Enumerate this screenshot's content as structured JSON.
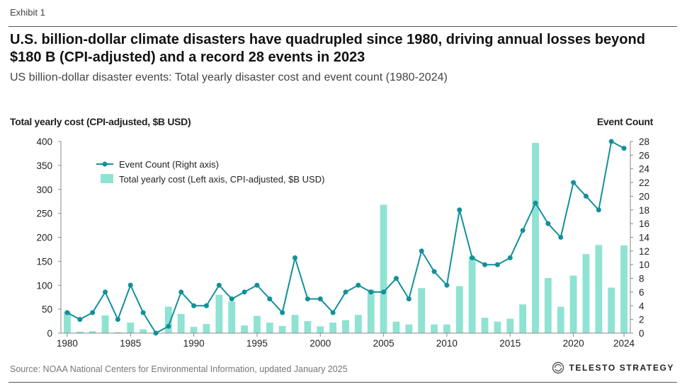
{
  "exhibit": "Exhibit 1",
  "headline": "U.S. billion-dollar climate disasters have quadrupled since 1980, driving annual losses beyond $180 B (CPI-adjusted) and a record 28 events in 2023",
  "subtitle": "US billion-dollar disaster events: Total yearly disaster cost and event count (1980-2024)",
  "source": "Source: NOAA National Centers for Environmental Information, updated January 2025",
  "brand": {
    "name": "TELESTO STRATEGY",
    "logo_icon": "circular-arrows-icon"
  },
  "colors": {
    "bar": "#8ee3d3",
    "line": "#13909a",
    "axis": "#888888",
    "text": "#222222"
  },
  "chart_data": {
    "type": "bar+line",
    "x": [
      1980,
      1981,
      1982,
      1983,
      1984,
      1985,
      1986,
      1987,
      1988,
      1989,
      1990,
      1991,
      1992,
      1993,
      1994,
      1995,
      1996,
      1997,
      1998,
      1999,
      2000,
      2001,
      2002,
      2003,
      2004,
      2005,
      2006,
      2007,
      2008,
      2009,
      2010,
      2011,
      2012,
      2013,
      2014,
      2015,
      2016,
      2017,
      2018,
      2019,
      2020,
      2021,
      2022,
      2023,
      2024
    ],
    "series": [
      {
        "name": "Event Count (Right axis)",
        "kind": "line",
        "axis": "right",
        "values": [
          3,
          2,
          3,
          6,
          2,
          7,
          3,
          0,
          1,
          6,
          4,
          4,
          7,
          5,
          6,
          7,
          5,
          3,
          11,
          5,
          5,
          3,
          6,
          7,
          6,
          6,
          8,
          5,
          12,
          9,
          7,
          18,
          11,
          10,
          10,
          11,
          15,
          19,
          16,
          14,
          22,
          20,
          18,
          28,
          27
        ]
      },
      {
        "name": "Total yearly cost (Left axis, CPI-adjusted, $B USD)",
        "kind": "bar",
        "axis": "left",
        "values": [
          45,
          3,
          4,
          37,
          2,
          22,
          8,
          0,
          55,
          40,
          13,
          19,
          80,
          66,
          16,
          36,
          22,
          15,
          38,
          25,
          14,
          22,
          27,
          38,
          91,
          268,
          24,
          18,
          94,
          18,
          18,
          98,
          160,
          32,
          24,
          30,
          60,
          397,
          115,
          55,
          120,
          165,
          184,
          95,
          183
        ]
      }
    ],
    "ylabel_left": "Total yearly cost (CPI-adjusted, $B USD)",
    "ylabel_right": "Event Count",
    "ylim_left": [
      0,
      400
    ],
    "ylim_right": [
      0,
      28
    ],
    "yticks_left": [
      0,
      50,
      100,
      150,
      200,
      250,
      300,
      350,
      400
    ],
    "yticks_right": [
      0,
      2,
      4,
      6,
      8,
      10,
      12,
      14,
      16,
      18,
      20,
      22,
      24,
      26,
      28
    ],
    "xticks": [
      1980,
      1985,
      1990,
      1995,
      2000,
      2005,
      2010,
      2015,
      2020,
      2024
    ],
    "legend_position": "top-left",
    "grid": false
  }
}
